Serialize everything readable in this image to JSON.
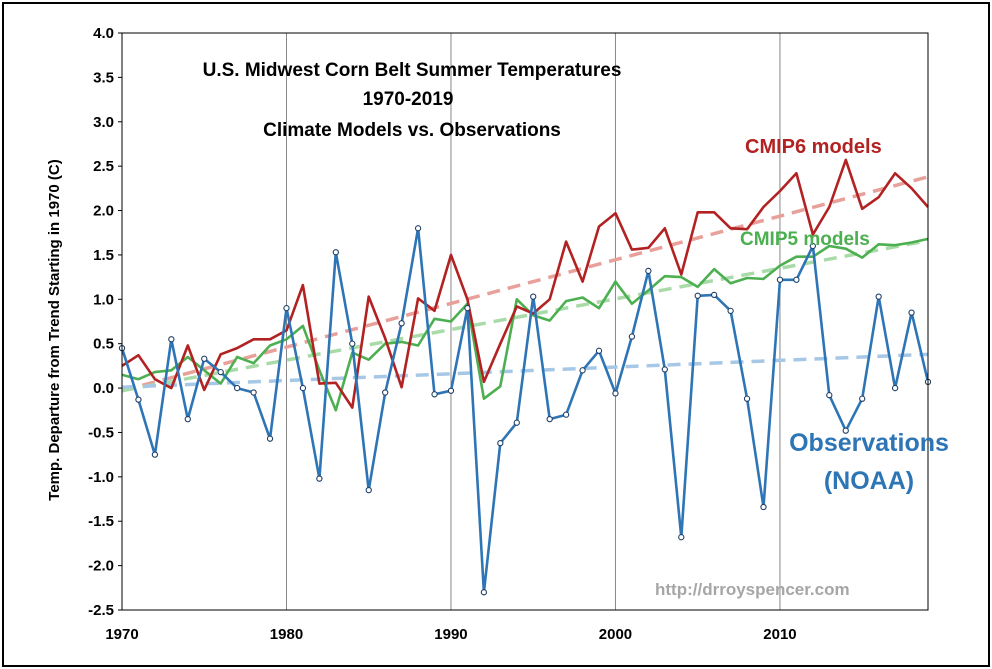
{
  "chart_data": {
    "type": "line",
    "title": [
      "U.S. Midwest Corn Belt Summer Temperatures",
      "1970-2019",
      "Climate Models vs. Observations"
    ],
    "xlabel": "",
    "ylabel": "Temp. Departure from Trend Starting in 1970 (C)",
    "xlim": [
      1970,
      2019
    ],
    "ylim": [
      -2.5,
      4.0
    ],
    "x_ticks": [
      "1970",
      "1980",
      "1990",
      "2000",
      "2010"
    ],
    "y_ticks": [
      "4.0",
      "3.5",
      "3.0",
      "2.5",
      "2.0",
      "1.5",
      "1.0",
      "0.5",
      "0.0",
      "-0.5",
      "-1.0",
      "-1.5",
      "-2.0",
      "-2.5"
    ],
    "grid": "vertical",
    "x": [
      1970,
      1971,
      1972,
      1973,
      1974,
      1975,
      1976,
      1977,
      1978,
      1979,
      1980,
      1981,
      1982,
      1983,
      1984,
      1985,
      1986,
      1987,
      1988,
      1989,
      1990,
      1991,
      1992,
      1993,
      1994,
      1995,
      1996,
      1997,
      1998,
      1999,
      2000,
      2001,
      2002,
      2003,
      2004,
      2005,
      2006,
      2007,
      2008,
      2009,
      2010,
      2011,
      2012,
      2013,
      2014,
      2015,
      2016,
      2017,
      2018,
      2019
    ],
    "series": [
      {
        "name": "CMIP6 models",
        "color": "#b22222",
        "values": [
          0.25,
          0.37,
          0.1,
          0.0,
          0.48,
          -0.02,
          0.38,
          0.45,
          0.55,
          0.55,
          0.65,
          1.16,
          0.05,
          0.06,
          -0.22,
          1.03,
          0.56,
          0.01,
          1.01,
          0.87,
          1.5,
          1.0,
          0.07,
          0.5,
          0.92,
          0.84,
          1.0,
          1.65,
          1.2,
          1.82,
          1.97,
          1.56,
          1.58,
          1.8,
          1.28,
          1.98,
          1.98,
          1.8,
          1.79,
          2.04,
          2.22,
          2.42,
          1.73,
          2.04,
          2.57,
          2.02,
          2.15,
          2.42,
          2.25,
          2.04
        ],
        "trend": [
          -0.03,
          2.38
        ]
      },
      {
        "name": "CMIP5 models",
        "color": "#4caf50",
        "values": [
          0.15,
          0.1,
          0.18,
          0.2,
          0.35,
          0.2,
          0.05,
          0.35,
          0.28,
          0.48,
          0.55,
          0.7,
          0.2,
          -0.25,
          0.4,
          0.32,
          0.5,
          0.52,
          0.48,
          0.78,
          0.75,
          0.95,
          -0.12,
          0.02,
          1.0,
          0.82,
          0.76,
          0.98,
          1.02,
          0.9,
          1.2,
          0.95,
          1.1,
          1.26,
          1.25,
          1.14,
          1.34,
          1.18,
          1.24,
          1.23,
          1.38,
          1.48,
          1.48,
          1.6,
          1.57,
          1.47,
          1.62,
          1.61,
          1.64,
          1.68
        ],
        "trend": [
          -0.03,
          1.66
        ]
      },
      {
        "name": "Observations",
        "name_line2": "(NOAA)",
        "color": "#2e75b6",
        "values": [
          0.45,
          -0.13,
          -0.75,
          0.55,
          -0.35,
          0.33,
          0.18,
          0.0,
          -0.05,
          -0.57,
          0.9,
          0.0,
          -1.02,
          1.53,
          0.5,
          -1.15,
          -0.05,
          0.73,
          1.8,
          -0.07,
          -0.03,
          0.9,
          -2.3,
          -0.62,
          -0.39,
          1.03,
          -0.35,
          -0.3,
          0.2,
          0.42,
          -0.06,
          0.58,
          1.32,
          0.21,
          -1.68,
          1.04,
          1.05,
          0.87,
          -0.12,
          -1.34,
          1.22,
          1.22,
          1.6,
          -0.08,
          -0.48,
          -0.12,
          1.03,
          0.0,
          0.85,
          0.07
        ],
        "trend": [
          0.01,
          0.38
        ]
      }
    ],
    "annotations": [
      "http://drroyspencer.com"
    ]
  }
}
